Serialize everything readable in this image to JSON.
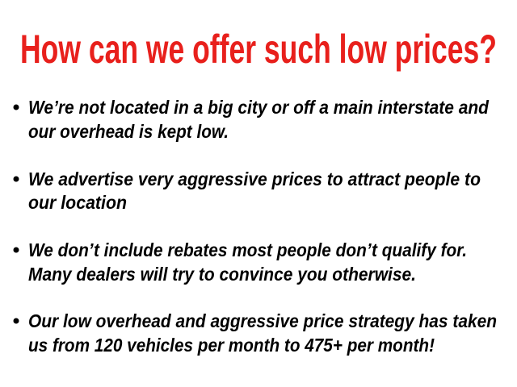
{
  "header": {
    "title": "How can we offer such low prices?"
  },
  "bullets": [
    {
      "lines": [
        "We’re not located in a big city or off a main interstate and",
        "our overhead is kept low."
      ]
    },
    {
      "lines": [
        "We advertise very aggressive prices to attract people to",
        "our location"
      ]
    },
    {
      "lines": [
        "We don’t include rebates most people don’t qualify for.",
        "Many dealers will try to convince you otherwise."
      ]
    },
    {
      "lines": [
        "Our low overhead and aggressive price strategy has taken",
        "us from 120 vehicles per month to 475+ per month!"
      ]
    }
  ]
}
